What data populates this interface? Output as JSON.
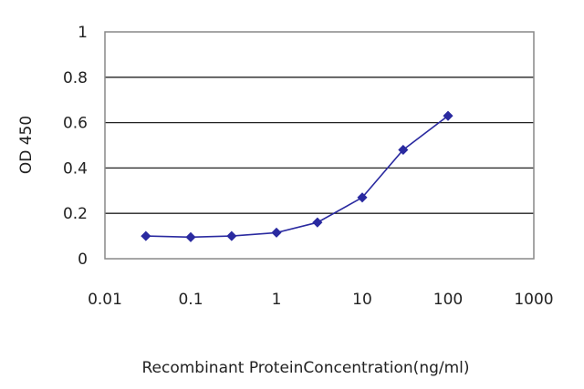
{
  "chart_data": {
    "type": "line",
    "title": "",
    "xlabel": "Recombinant ProteinConcentration(ng/ml)",
    "ylabel": "OD 450",
    "x_scale": "log",
    "xlim": [
      0.01,
      1000
    ],
    "ylim": [
      0,
      1
    ],
    "x_ticks": [
      "0.01",
      "0.1",
      "1",
      "10",
      "100",
      "1000"
    ],
    "y_ticks": [
      "0",
      "0.2",
      "0.4",
      "0.6",
      "0.8",
      "1"
    ],
    "grid": "horizontal",
    "legend": "none",
    "series": [
      {
        "color": "#2a2aa0",
        "marker": "diamond",
        "x": [
          0.03,
          0.1,
          0.3,
          1,
          3,
          10,
          30,
          100
        ],
        "y": [
          0.1,
          0.095,
          0.1,
          0.115,
          0.16,
          0.27,
          0.48,
          0.63
        ]
      }
    ]
  }
}
